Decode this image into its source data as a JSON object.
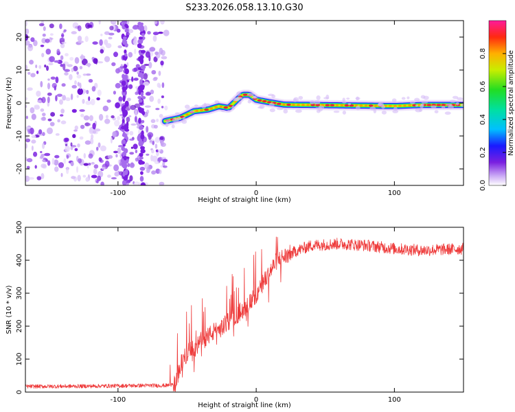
{
  "title": "S233.2026.058.13.10.G30",
  "colors": {
    "snr_line": "#ee3a3a",
    "noise_purple": "#7a1fe0",
    "ridge_core": "#e8203a",
    "axis": "#000000"
  },
  "chart_data": [
    {
      "type": "heatmap",
      "name": "spectrogram",
      "xlabel": "Height of straight line (km)",
      "ylabel": "Frequency (Hz)",
      "xlim": [
        -167,
        150
      ],
      "ylim": [
        -25,
        25
      ],
      "x_ticks": [
        -100,
        0,
        100
      ],
      "y_ticks": [
        -20,
        -10,
        0,
        10,
        20
      ],
      "signal_onset_x": -66,
      "ridge": {
        "x": [
          -66,
          -55,
          -45,
          -35,
          -27,
          -20,
          -15,
          -10,
          -5,
          0,
          10,
          20,
          40,
          80,
          100,
          120,
          148
        ],
        "freq": [
          -5.5,
          -4.5,
          -2.5,
          -2.0,
          -1.0,
          -1.5,
          0.5,
          2.5,
          2.5,
          1.0,
          0.2,
          -0.5,
          -0.6,
          -0.8,
          -0.9,
          -0.6,
          -0.6
        ]
      },
      "colorbar": {
        "label": "Normalized spectral amplitude",
        "ticks": [
          "0.0",
          "0.2",
          "0.4",
          "0.6",
          "0.8"
        ],
        "range": [
          0,
          1
        ]
      }
    },
    {
      "type": "line",
      "name": "snr",
      "xlabel": "Height of straight line (km)",
      "ylabel": "SNR (10 * v/v)",
      "xlim": [
        -167,
        150
      ],
      "ylim": [
        0,
        500
      ],
      "x_ticks": [
        -100,
        0,
        100
      ],
      "y_ticks": [
        0,
        100,
        200,
        300,
        400,
        500
      ],
      "series": [
        {
          "name": "SNR",
          "x": [
            -167,
            -120,
            -80,
            -65,
            -58,
            -55,
            -50,
            -45,
            -40,
            -35,
            -30,
            -25,
            -20,
            -15,
            -10,
            -5,
            0,
            5,
            10,
            15,
            20,
            30,
            40,
            60,
            80,
            100,
            120,
            150
          ],
          "y": [
            17,
            18,
            20,
            20,
            25,
            80,
            120,
            130,
            150,
            170,
            185,
            195,
            215,
            230,
            250,
            270,
            290,
            330,
            365,
            400,
            410,
            430,
            445,
            450,
            445,
            435,
            430,
            435
          ]
        }
      ]
    }
  ]
}
